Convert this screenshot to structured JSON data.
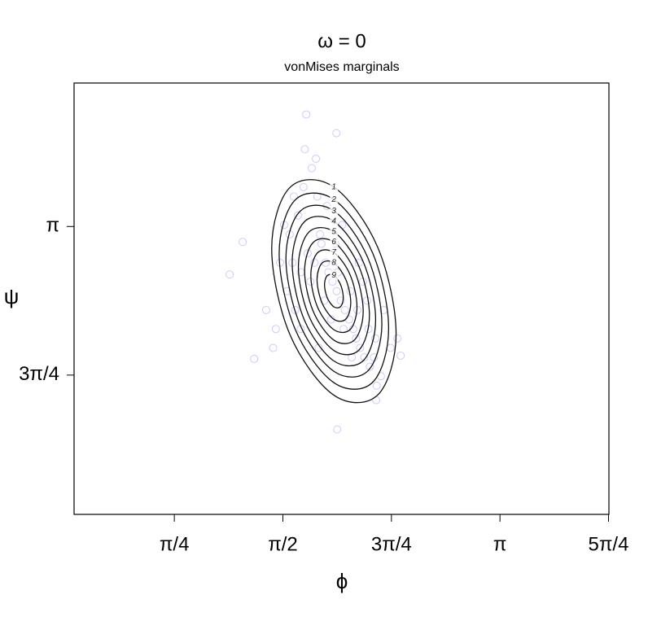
{
  "chart_data": {
    "type": "contour-scatter",
    "title": "ω = 0",
    "subtitle": "vonMises marginals",
    "x_label": "ϕ",
    "y_label": "ψ",
    "xlim": [
      0.06,
      3.93
    ],
    "ylim": [
      1.62,
      3.9
    ],
    "xticks": [
      {
        "value": 0.7854,
        "label": "π/4"
      },
      {
        "value": 1.5708,
        "label": "π/2"
      },
      {
        "value": 2.3562,
        "label": "3π/4"
      },
      {
        "value": 3.1416,
        "label": "π"
      },
      {
        "value": 3.927,
        "label": "5π/4"
      }
    ],
    "yticks": [
      {
        "value": 2.3562,
        "label": "3π/4"
      },
      {
        "value": 3.1416,
        "label": "π"
      }
    ],
    "points": {
      "color": "#6a6af0",
      "x": [
        1.74,
        1.958,
        1.186,
        1.363,
        1.964,
        2.246,
        2.423,
        1.28,
        1.55,
        1.62,
        1.68,
        1.72,
        1.78,
        1.82,
        1.85,
        1.88,
        1.9,
        1.93,
        1.96,
        1.99,
        2.02,
        2.05,
        2.08,
        2.1,
        2.13,
        2.16,
        2.2,
        2.24,
        2.28,
        1.6,
        1.66,
        1.7,
        1.75,
        1.8,
        1.84,
        1.87,
        1.92,
        1.97,
        2.01,
        2.06,
        2.11,
        2.15,
        2.19,
        2.23,
        1.45,
        1.5,
        1.58,
        1.65,
        1.73,
        1.81,
        1.89,
        2.0,
        2.12,
        2.3,
        2.35,
        1.7,
        1.77,
        1.95,
        2.07,
        2.18,
        1.52,
        1.64,
        1.83,
        2.25,
        2.4
      ],
      "y": [
        3.734,
        3.635,
        2.888,
        2.442,
        2.069,
        2.224,
        2.459,
        3.06,
        2.95,
        3.1,
        3.2,
        3.35,
        3.45,
        3.3,
        3.05,
        2.95,
        2.9,
        2.85,
        2.8,
        2.75,
        2.7,
        2.65,
        2.6,
        2.55,
        2.5,
        2.45,
        2.4,
        2.55,
        2.35,
        2.8,
        2.7,
        2.9,
        3.0,
        2.95,
        3.1,
        2.75,
        2.65,
        2.9,
        2.6,
        2.8,
        2.7,
        2.85,
        2.6,
        2.45,
        2.7,
        2.5,
        3.15,
        3.3,
        3.55,
        3.5,
        3.25,
        3.15,
        2.95,
        2.7,
        2.5,
        2.6,
        2.85,
        3.05,
        2.45,
        2.75,
        2.6,
        2.95,
        2.5,
        2.3,
        2.55
      ]
    },
    "contours": [
      {
        "level": 1,
        "x": [
          2.39,
          2.258,
          1.94,
          1.622,
          1.49,
          1.622,
          1.94,
          2.258
        ],
        "y": [
          2.575,
          3.03,
          3.35,
          3.348,
          3.025,
          2.57,
          2.25,
          2.252
        ]
      },
      {
        "level": 2,
        "x": [
          2.336,
          2.22,
          1.94,
          1.66,
          1.544,
          1.66,
          1.94,
          2.22
        ],
        "y": [
          2.602,
          3.002,
          3.284,
          3.282,
          2.998,
          2.598,
          2.316,
          2.318
        ]
      },
      {
        "level": 3,
        "x": [
          2.287,
          2.185,
          1.94,
          1.695,
          1.593,
          1.695,
          1.94,
          2.185
        ],
        "y": [
          2.627,
          2.977,
          3.224,
          3.222,
          2.973,
          2.623,
          2.376,
          2.378
        ]
      },
      {
        "level": 4,
        "x": [
          2.242,
          2.153,
          1.94,
          1.727,
          1.638,
          1.727,
          1.94,
          2.153
        ],
        "y": [
          2.649,
          2.954,
          3.169,
          3.167,
          2.951,
          2.646,
          2.431,
          2.433
        ]
      },
      {
        "level": 5,
        "x": [
          2.197,
          2.121,
          1.94,
          1.759,
          1.683,
          1.759,
          1.94,
          2.121
        ],
        "y": [
          2.672,
          2.931,
          3.114,
          3.112,
          2.928,
          2.669,
          2.486,
          2.488
        ]
      },
      {
        "level": 6,
        "x": [
          2.152,
          2.089,
          1.94,
          1.791,
          1.728,
          1.791,
          1.94,
          2.089
        ],
        "y": [
          2.694,
          2.908,
          3.059,
          3.058,
          2.906,
          2.692,
          2.541,
          2.542
        ]
      },
      {
        "level": 7,
        "x": [
          2.107,
          2.058,
          1.94,
          1.822,
          1.773,
          1.822,
          1.94,
          2.058
        ],
        "y": [
          2.717,
          2.885,
          3.004,
          3.003,
          2.883,
          2.715,
          2.596,
          2.597
        ]
      },
      {
        "level": 8,
        "x": [
          2.062,
          2.026,
          1.94,
          1.854,
          1.818,
          1.854,
          1.94,
          2.026
        ],
        "y": [
          2.739,
          2.862,
          2.949,
          2.948,
          2.861,
          2.738,
          2.651,
          2.652
        ]
      },
      {
        "level": 9,
        "x": [
          2.008,
          1.988,
          1.94,
          1.892,
          1.872,
          1.892,
          1.94,
          1.988
        ],
        "y": [
          2.766,
          2.835,
          2.883,
          2.882,
          2.834,
          2.765,
          2.717,
          2.718
        ]
      }
    ]
  }
}
